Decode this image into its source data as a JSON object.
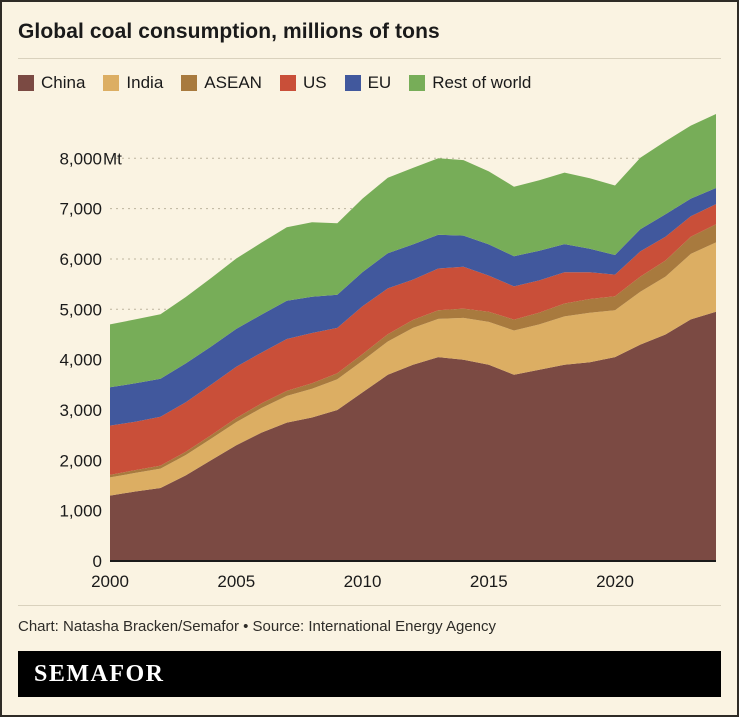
{
  "title": "Global coal consumption, millions of tons",
  "footer": {
    "credit": "Chart: Natasha Bracken/Semafor • Source: International Energy Agency",
    "logo": "SEMAFOR"
  },
  "colors": {
    "background": "#faf3e2",
    "border": "#2e2b26",
    "grid": "#bdb49e",
    "text": "#1a1a1a",
    "logo_bg": "#000000",
    "logo_text": "#ffffff"
  },
  "chart_data": {
    "type": "area",
    "stacked": true,
    "title": "Global coal consumption, millions of tons",
    "unit": "Mt",
    "legend_position": "top",
    "grid": "dashed-horizontal",
    "x": [
      2000,
      2001,
      2002,
      2003,
      2004,
      2005,
      2006,
      2007,
      2008,
      2009,
      2010,
      2011,
      2012,
      2013,
      2014,
      2015,
      2016,
      2017,
      2018,
      2019,
      2020,
      2021,
      2022,
      2023,
      2024
    ],
    "xticks": [
      2000,
      2005,
      2010,
      2015,
      2020
    ],
    "yticks": [
      0,
      1000,
      2000,
      3000,
      4000,
      5000,
      6000,
      7000,
      8000
    ],
    "ytick_labels": [
      "0",
      "1,000",
      "2,000",
      "3,000",
      "4,000",
      "5,000",
      "6,000",
      "7,000",
      "8,000Mt"
    ],
    "ylim": [
      0,
      8900
    ],
    "series": [
      {
        "name": "China",
        "color": "#7b4a43",
        "values": [
          1300,
          1380,
          1450,
          1700,
          2000,
          2300,
          2550,
          2750,
          2850,
          3000,
          3350,
          3700,
          3900,
          4050,
          4000,
          3900,
          3700,
          3800,
          3900,
          3950,
          4050,
          4300,
          4500,
          4800,
          4950
        ]
      },
      {
        "name": "India",
        "color": "#dcae63",
        "values": [
          360,
          370,
          385,
          405,
          430,
          460,
          490,
          530,
          570,
          610,
          630,
          660,
          730,
          760,
          830,
          850,
          880,
          900,
          960,
          980,
          930,
          1050,
          1150,
          1300,
          1380
        ]
      },
      {
        "name": "ASEAN",
        "color": "#a87a3e",
        "values": [
          50,
          55,
          60,
          65,
          70,
          80,
          90,
          100,
          110,
          120,
          130,
          145,
          160,
          170,
          185,
          200,
          215,
          235,
          255,
          275,
          280,
          300,
          320,
          340,
          360
        ]
      },
      {
        "name": "US",
        "color": "#c94f39",
        "values": [
          980,
          960,
          970,
          985,
          1000,
          1020,
          1010,
          1030,
          1000,
          900,
          950,
          910,
          800,
          830,
          830,
          720,
          660,
          640,
          620,
          530,
          430,
          500,
          470,
          410,
          400
        ]
      },
      {
        "name": "EU",
        "color": "#41589d",
        "values": [
          760,
          765,
          755,
          770,
          760,
          750,
          755,
          760,
          720,
          660,
          680,
          700,
          700,
          670,
          620,
          620,
          600,
          590,
          560,
          470,
          390,
          440,
          450,
          350,
          320
        ]
      },
      {
        "name": "Rest of world",
        "color": "#77ad58",
        "values": [
          1250,
          1270,
          1280,
          1320,
          1360,
          1400,
          1430,
          1460,
          1480,
          1420,
          1460,
          1500,
          1520,
          1520,
          1500,
          1450,
          1380,
          1400,
          1420,
          1400,
          1380,
          1420,
          1450,
          1450,
          1470
        ]
      }
    ]
  }
}
